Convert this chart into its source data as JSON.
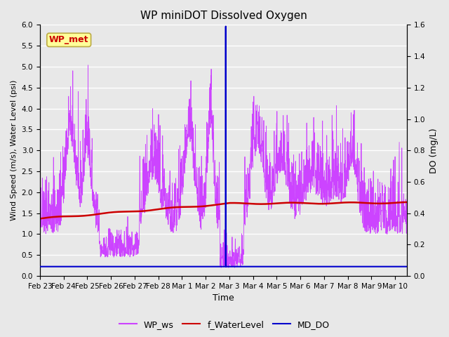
{
  "title": "WP miniDOT Dissolved Oxygen",
  "xlabel": "Time",
  "ylabel_left": "Wind Speed (m/s), Water Level (psi)",
  "ylabel_right": "DO (mg/L)",
  "xlim_days": [
    0,
    15.5
  ],
  "ylim_left": [
    0.0,
    6.0
  ],
  "ylim_right": [
    0.0,
    1.6
  ],
  "yticks_left": [
    0.0,
    0.5,
    1.0,
    1.5,
    2.0,
    2.5,
    3.0,
    3.5,
    4.0,
    4.5,
    5.0,
    5.5,
    6.0
  ],
  "yticks_right": [
    0.0,
    0.2,
    0.4,
    0.6,
    0.8,
    1.0,
    1.2,
    1.4,
    1.6
  ],
  "xtick_labels": [
    "Feb 23",
    "Feb 24",
    "Feb 25",
    "Feb 26",
    "Feb 27",
    "Feb 28",
    "Mar 1",
    "Mar 2",
    "Mar 3",
    "Mar 4",
    "Mar 5",
    "Mar 6",
    "Mar 7",
    "Mar 8",
    "Mar 9",
    "Mar 10"
  ],
  "xtick_positions": [
    0,
    1,
    2,
    3,
    4,
    5,
    6,
    7,
    8,
    9,
    10,
    11,
    12,
    13,
    14,
    15
  ],
  "fig_bg_color": "#e8e8e8",
  "plot_bg_color": "#e8e8e8",
  "wp_ws_color": "#cc44ff",
  "f_waterlevel_color": "#cc0000",
  "md_do_color": "#0000cc",
  "annotation_text": "WP_met",
  "annotation_color": "#cc0000",
  "annotation_bg": "#ffff99",
  "annotation_edge": "#bbaa44",
  "legend_labels": [
    "WP_ws",
    "f_WaterLevel",
    "MD_DO"
  ],
  "title_fontsize": 11,
  "label_fontsize": 8,
  "tick_fontsize": 7.5
}
